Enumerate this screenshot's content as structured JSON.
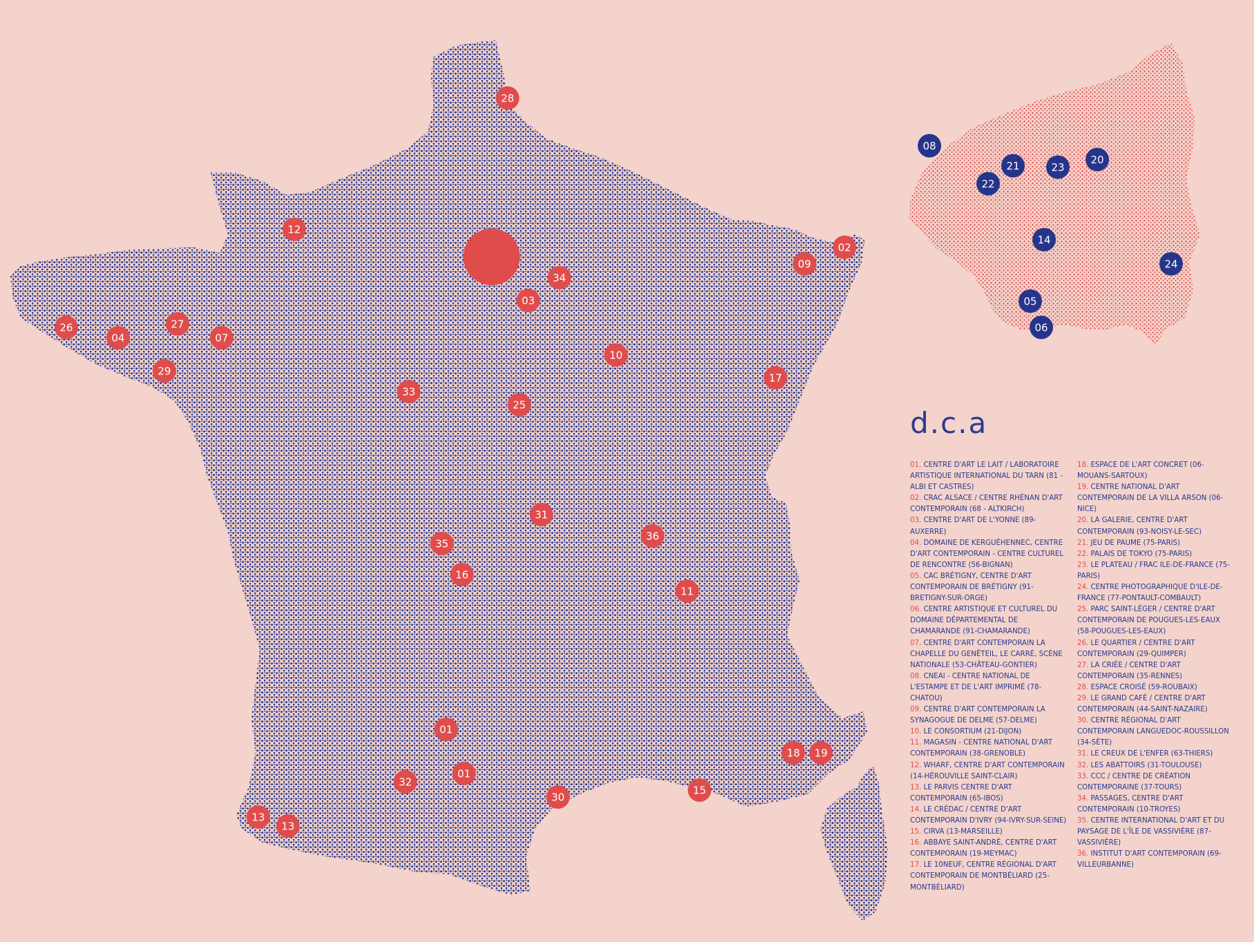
{
  "colors": {
    "background": "#f3d3cb",
    "france_dots": "#2a3a8f",
    "idf_dots": "#e05050",
    "marker_red": "#e04c4c",
    "marker_blue": "#26358c",
    "marker_text": "#ffffff",
    "legend_text": "#2a3a8f",
    "legend_number": "#e04c4c"
  },
  "legend": {
    "title": "d.c.a",
    "entries": [
      {
        "num": "01.",
        "text": "Centre d'art Le Lait / Laboratoire artistique international du Tarn (81 - Albi et Castres)"
      },
      {
        "num": "02.",
        "text": "CRAC Alsace / Centre rhénan d'art contemporain (68 - Altkirch)"
      },
      {
        "num": "03.",
        "text": "Centre d'art de l'Yonne (89-Auxerre)"
      },
      {
        "num": "04.",
        "text": "Domaine de Kerguéhennec, centre d'art contemporain - centre culturel de rencontre (56-Bignan)"
      },
      {
        "num": "05.",
        "text": "CAC Brétigny, centre d'art contemporain de Brétigny (91-Bretigny-sur-Orge)"
      },
      {
        "num": "06.",
        "text": "Centre artistique et culturel du Domaine départemental de Chamarande (91-Chamarande)"
      },
      {
        "num": "07.",
        "text": "Centre d'art contemporain La Chapelle du Genêteil, Le Carré, scène nationale (53-Château-Gontier)"
      },
      {
        "num": "08.",
        "text": "CNEAI - Centre national de l'estampe et de l'art imprimé (78-Chatou)"
      },
      {
        "num": "09.",
        "text": "Centre d'art contemporain La synagogue de Delme (57-Delme)"
      },
      {
        "num": "10.",
        "text": "Le Consortium (21-Dijon)"
      },
      {
        "num": "11.",
        "text": "Magasin - Centre national d'art contemporain (38-Grenoble)"
      },
      {
        "num": "12.",
        "text": "Wharf, centre d'art contemporain (14-Hérouville Saint-Clair)"
      },
      {
        "num": "13.",
        "text": "Le Parvis centre d'art contemporain (65-Ibos)"
      },
      {
        "num": "14.",
        "text": "Le Crédac / centre d'art contemporain d'Ivry (94-Ivry-sur-Seine)"
      },
      {
        "num": "15.",
        "text": "CIRVA (13-Marseille)"
      },
      {
        "num": "16.",
        "text": "Abbaye Saint-André, centre d'art contemporain (19-Meymac)"
      },
      {
        "num": "17.",
        "text": "Le 10neuf, centre régional d'art contemporain de Montbéliard (25-Montbéliard)"
      },
      {
        "num": "18.",
        "text": "Espace de l'art concret (06-Mouans-Sartoux)"
      },
      {
        "num": "19.",
        "text": "Centre national d'art contemporain de la Villa Arson (06-Nice)"
      },
      {
        "num": "20.",
        "text": "La Galerie, centre d'art contemporain (93-Noisy-le-Sec)"
      },
      {
        "num": "21.",
        "text": "Jeu de Paume (75-Paris)"
      },
      {
        "num": "22.",
        "text": "Palais de Tokyo (75-Paris)"
      },
      {
        "num": "23.",
        "text": "Le Plateau / Frac Ile-de-France (75-Paris)"
      },
      {
        "num": "24.",
        "text": "Centre photographique d'Ile-de-France (77-Pontault-Combault)"
      },
      {
        "num": "25.",
        "text": "Parc Saint-Léger / Centre d'art contemporain de Pougues-les-Eaux (58-Pougues-les-Eaux)"
      },
      {
        "num": "26.",
        "text": "Le Quartier / Centre d'art contemporain (29-Quimper)"
      },
      {
        "num": "27.",
        "text": "La Criée / centre d'art contemporain (35-Rennes)"
      },
      {
        "num": "28.",
        "text": "Espace Croisé (59-Roubaix)"
      },
      {
        "num": "29.",
        "text": "Le Grand Café / centre d'art contemporain (44-Saint-Nazaire)"
      },
      {
        "num": "30.",
        "text": "Centre régional d'art contemporain Languedoc-Roussillon (34-Sète)"
      },
      {
        "num": "31.",
        "text": "Le Creux de l'Enfer (63-Thiers)"
      },
      {
        "num": "32.",
        "text": "Les Abattoirs (31-Toulouse)"
      },
      {
        "num": "33.",
        "text": "CCC / centre de création contemporaine (37-Tours)"
      },
      {
        "num": "34.",
        "text": "Passages, centre d'art contemporain (10-Troyes)"
      },
      {
        "num": "35.",
        "text": "Centre international d'art et du paysage de l'île de Vassivière (87-Vassivière)"
      },
      {
        "num": "36.",
        "text": "Institut d'art contemporain (69-Villeurbanne)"
      }
    ]
  },
  "france_markers": [
    {
      "label": "28",
      "place": "Roubaix"
    },
    {
      "label": "12",
      "place": "Hérouville Saint-Clair"
    },
    {
      "label": "02",
      "place": "Altkirch"
    },
    {
      "label": "09",
      "place": "Delme"
    },
    {
      "label": "34",
      "place": "Troyes"
    },
    {
      "label": "03",
      "place": "Auxerre"
    },
    {
      "label": "26",
      "place": "Quimper"
    },
    {
      "label": "04",
      "place": "Bignan"
    },
    {
      "label": "27",
      "place": "Rennes"
    },
    {
      "label": "07",
      "place": "Château-Gontier"
    },
    {
      "label": "29",
      "place": "Saint-Nazaire"
    },
    {
      "label": "10",
      "place": "Dijon"
    },
    {
      "label": "17",
      "place": "Montbéliard"
    },
    {
      "label": "33",
      "place": "Tours"
    },
    {
      "label": "25",
      "place": "Pougues-les-Eaux"
    },
    {
      "label": "31",
      "place": "Thiers"
    },
    {
      "label": "36",
      "place": "Villeurbanne"
    },
    {
      "label": "35",
      "place": "Vassivière"
    },
    {
      "label": "16",
      "place": "Meymac"
    },
    {
      "label": "11",
      "place": "Grenoble"
    },
    {
      "label": "01",
      "place": "Albi"
    },
    {
      "label": "01",
      "place": "Castres"
    },
    {
      "label": "32",
      "place": "Toulouse"
    },
    {
      "label": "30",
      "place": "Sète"
    },
    {
      "label": "15",
      "place": "Marseille"
    },
    {
      "label": "18",
      "place": "Mouans-Sartoux"
    },
    {
      "label": "19",
      "place": "Nice"
    },
    {
      "label": "13",
      "place": "Ibos"
    },
    {
      "label": "13",
      "place": "Ibos"
    }
  ],
  "idf_markers": [
    {
      "label": "08",
      "place": "Chatou"
    },
    {
      "label": "21",
      "place": "Paris"
    },
    {
      "label": "23",
      "place": "Paris"
    },
    {
      "label": "20",
      "place": "Noisy-le-Sec"
    },
    {
      "label": "22",
      "place": "Paris"
    },
    {
      "label": "14",
      "place": "Ivry-sur-Seine"
    },
    {
      "label": "24",
      "place": "Pontault-Combault"
    },
    {
      "label": "05",
      "place": "Brétigny-sur-Orge"
    },
    {
      "label": "06",
      "place": "Chamarande"
    }
  ]
}
